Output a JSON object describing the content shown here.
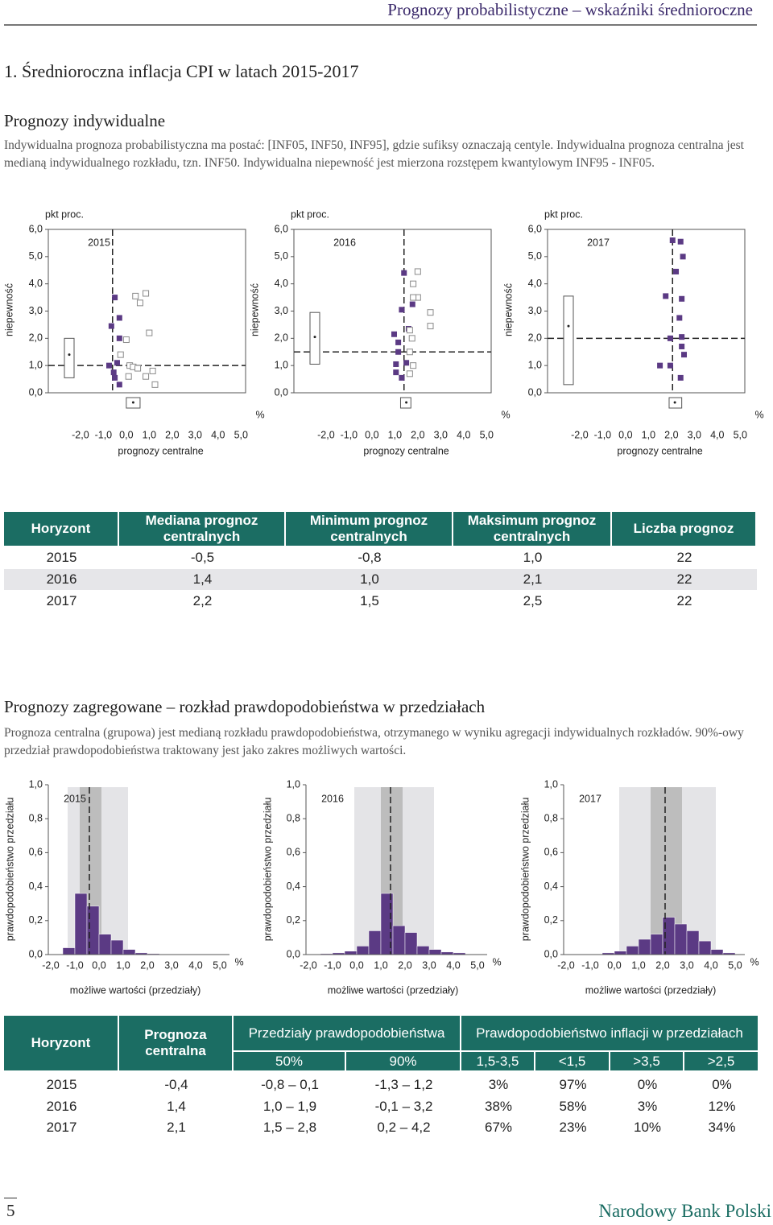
{
  "header": {
    "title": "Prognozy probabilistyczne – wskaźniki średnioroczne"
  },
  "section": {
    "title": "1. Średnioroczna inflacja CPI w latach 2015-2017"
  },
  "individual": {
    "heading": "Prognozy indywidualne",
    "text": "Indywidualna prognoza probabilistyczna ma postać: [INF05, INF50, INF95], gdzie sufiksy oznaczają centyle. Indywidualna prognoza centralna jest medianą indywidualnego rozkładu, tzn. INF50. Indywidualna niepewność jest mierzona rozstępem kwantylowym INF95 - INF05."
  },
  "chart_data": [
    {
      "type": "scatter",
      "title": "2015",
      "y_unit": "pkt proc.",
      "ylabel": "niepewność",
      "xlabel": "prognozy centralne",
      "x_unit": "%",
      "xlim": [
        -3.4,
        5.2
      ],
      "ylim": [
        0,
        6
      ],
      "xticks": [
        {
          "value": -2,
          "label": "-2,0"
        },
        {
          "value": -1,
          "label": "-1,0"
        },
        {
          "value": 0,
          "label": "0,0"
        },
        {
          "value": 1,
          "label": "1,0"
        },
        {
          "value": 2,
          "label": "2,0"
        },
        {
          "value": 3,
          "label": "3,0"
        },
        {
          "value": 4,
          "label": "4,0"
        },
        {
          "value": 5,
          "label": "5,0"
        }
      ],
      "yticks": [
        {
          "value": 0,
          "label": "0,0"
        },
        {
          "value": 1,
          "label": "1,0"
        },
        {
          "value": 2,
          "label": "2,0"
        },
        {
          "value": 3,
          "label": "3,0"
        },
        {
          "value": 4,
          "label": "4,0"
        },
        {
          "value": 5,
          "label": "5,0"
        },
        {
          "value": 6,
          "label": "6,0"
        }
      ],
      "median_x": -0.6,
      "median_y": 1.0,
      "series": [
        {
          "marker": "filled",
          "color": "#5b3a84",
          "x": [
            -0.5,
            -0.3,
            -0.65,
            -0.3,
            -0.75,
            -0.55,
            -0.5,
            -0.3,
            -0.4
          ],
          "values": [
            3.5,
            2.75,
            2.45,
            2.0,
            1.0,
            0.75,
            0.55,
            0.3,
            1.1
          ]
        },
        {
          "marker": "hollow",
          "color": "#8a8a8a",
          "x": [
            0.4,
            0.6,
            0.85,
            1.0,
            0.0,
            -0.25,
            0.15,
            0.3,
            0.5,
            1.15,
            0.85,
            1.25,
            0.1
          ],
          "values": [
            3.55,
            3.3,
            3.65,
            2.2,
            1.95,
            1.4,
            1.0,
            0.95,
            0.9,
            0.8,
            0.6,
            0.3,
            0.6
          ]
        }
      ],
      "y_box": [
        0.55,
        2.0
      ],
      "y_box_dot": 1.4,
      "x_box": [
        0.0,
        0.6
      ],
      "x_box_dot": 0.3
    },
    {
      "type": "scatter",
      "title": "2016",
      "y_unit": "pkt proc.",
      "ylabel": "niepewność",
      "xlabel": "prognozy centralne",
      "x_unit": "%",
      "xlim": [
        -3.4,
        5.2
      ],
      "ylim": [
        0,
        6
      ],
      "xticks": [
        {
          "value": -2,
          "label": "-2,0"
        },
        {
          "value": -1,
          "label": "-1,0"
        },
        {
          "value": 0,
          "label": "0,0"
        },
        {
          "value": 1,
          "label": "1,0"
        },
        {
          "value": 2,
          "label": "2,0"
        },
        {
          "value": 3,
          "label": "3,0"
        },
        {
          "value": 4,
          "label": "4,0"
        },
        {
          "value": 5,
          "label": "5,0"
        }
      ],
      "yticks": [
        {
          "value": 0,
          "label": "0,0"
        },
        {
          "value": 1,
          "label": "1,0"
        },
        {
          "value": 2,
          "label": "2,0"
        },
        {
          "value": 3,
          "label": "3,0"
        },
        {
          "value": 4,
          "label": "4,0"
        },
        {
          "value": 5,
          "label": "5,0"
        },
        {
          "value": 6,
          "label": "6,0"
        }
      ],
      "median_x": 1.4,
      "median_y": 1.5,
      "series": [
        {
          "marker": "filled",
          "color": "#5b3a84",
          "x": [
            1.4,
            1.3,
            0.97,
            1.15,
            1.05,
            1.5,
            1.05,
            1.3,
            1.6,
            1.77,
            1.15
          ],
          "values": [
            4.4,
            3.05,
            2.15,
            1.85,
            1.05,
            1.1,
            0.75,
            0.55,
            2.35,
            3.25,
            1.5
          ]
        },
        {
          "marker": "hollow",
          "color": "#8a8a8a",
          "x": [
            2.0,
            1.8,
            2.0,
            1.8,
            2.55,
            2.55,
            1.65,
            1.75,
            1.65,
            1.8,
            1.65
          ],
          "values": [
            4.45,
            4.0,
            3.5,
            3.5,
            2.95,
            2.45,
            2.3,
            2.0,
            1.5,
            1.0,
            0.7
          ]
        }
      ],
      "y_box": [
        1.05,
        2.95
      ],
      "y_box_dot": 2.05,
      "x_box": [
        1.25,
        1.7
      ],
      "x_box_dot": 1.5
    },
    {
      "type": "scatter",
      "title": "2017",
      "y_unit": "pkt proc.",
      "ylabel": "niepewność",
      "xlabel": "prognozy centralne",
      "x_unit": "%",
      "xlim": [
        -3.4,
        5.2
      ],
      "ylim": [
        0,
        6
      ],
      "xticks": [
        {
          "value": -2,
          "label": "-2,0"
        },
        {
          "value": -1,
          "label": "-1,0"
        },
        {
          "value": 0,
          "label": "0,0"
        },
        {
          "value": 1,
          "label": "1,0"
        },
        {
          "value": 2,
          "label": "2,0"
        },
        {
          "value": 3,
          "label": "3,0"
        },
        {
          "value": 4,
          "label": "4,0"
        },
        {
          "value": 5,
          "label": "5,0"
        }
      ],
      "yticks": [
        {
          "value": 0,
          "label": "0,0"
        },
        {
          "value": 1,
          "label": "1,0"
        },
        {
          "value": 2,
          "label": "2,0"
        },
        {
          "value": 3,
          "label": "3,0"
        },
        {
          "value": 4,
          "label": "4,0"
        },
        {
          "value": 5,
          "label": "5,0"
        },
        {
          "value": 6,
          "label": "6,0"
        }
      ],
      "median_x": 2.05,
      "median_y": 2.0,
      "series": [
        {
          "marker": "filled",
          "color": "#5b3a84",
          "x": [
            2.05,
            2.4,
            2.5,
            2.2,
            1.75,
            2.45,
            2.35,
            2.45,
            2.45,
            2.55,
            1.5,
            1.95,
            2.4,
            1.95
          ],
          "values": [
            5.6,
            5.55,
            5.0,
            4.45,
            3.55,
            3.45,
            2.75,
            2.05,
            1.7,
            1.4,
            1.0,
            1.0,
            0.55,
            2.0
          ]
        }
      ],
      "y_box": [
        0.3,
        3.55
      ],
      "y_box_dot": 2.45,
      "x_box": [
        1.9,
        2.45
      ],
      "x_box_dot": 2.15
    },
    {
      "type": "histogram",
      "title": "2015",
      "ylabel": "prawdopodobieństwo przedziału",
      "xlabel": "możliwe wartości (przedziały)",
      "x_unit": "%",
      "xlim": [
        -2.1,
        5.4
      ],
      "ylim": [
        0,
        1
      ],
      "xticks": [
        {
          "value": -2,
          "label": "-2,0"
        },
        {
          "value": -1,
          "label": "-1,0"
        },
        {
          "value": 0,
          "label": "0,0"
        },
        {
          "value": 1,
          "label": "1,0"
        },
        {
          "value": 2,
          "label": "2,0"
        },
        {
          "value": 3,
          "label": "3,0"
        },
        {
          "value": 4,
          "label": "4,0"
        },
        {
          "value": 5,
          "label": "5,0"
        }
      ],
      "yticks": [
        {
          "value": 0,
          "label": "0,0"
        },
        {
          "value": 0.2,
          "label": "0,2"
        },
        {
          "value": 0.4,
          "label": "0,4"
        },
        {
          "value": 0.6,
          "label": "0,6"
        },
        {
          "value": 0.8,
          "label": "0,8"
        },
        {
          "value": 1,
          "label": "1,0"
        }
      ],
      "bins": [
        -1.5,
        -1,
        -0.5,
        0,
        0.5,
        1,
        1.5,
        2,
        2.5
      ],
      "values": [
        0.04,
        0.36,
        0.285,
        0.12,
        0.085,
        0.03,
        0.01,
        0.005
      ],
      "color": "#5b3a84",
      "band_90": [
        -1.3,
        1.2
      ],
      "band_90_color": "#e4e4e7",
      "band_50": [
        -0.8,
        0.1
      ],
      "band_50_color": "#bdbdbd",
      "median": -0.4
    },
    {
      "type": "histogram",
      "title": "2016",
      "ylabel": "prawdopodobieństwo przedziału",
      "xlabel": "możliwe wartości (przedziały)",
      "x_unit": "%",
      "xlim": [
        -2.1,
        5.4
      ],
      "ylim": [
        0,
        1
      ],
      "xticks": [
        {
          "value": -2,
          "label": "-2,0"
        },
        {
          "value": -1,
          "label": "-1,0"
        },
        {
          "value": 0,
          "label": "0,0"
        },
        {
          "value": 1,
          "label": "1,0"
        },
        {
          "value": 2,
          "label": "2,0"
        },
        {
          "value": 3,
          "label": "3,0"
        },
        {
          "value": 4,
          "label": "4,0"
        },
        {
          "value": 5,
          "label": "5,0"
        }
      ],
      "yticks": [
        {
          "value": 0,
          "label": "0,0"
        },
        {
          "value": 0.2,
          "label": "0,2"
        },
        {
          "value": 0.4,
          "label": "0,4"
        },
        {
          "value": 0.6,
          "label": "0,6"
        },
        {
          "value": 0.8,
          "label": "0,8"
        },
        {
          "value": 1,
          "label": "1,0"
        }
      ],
      "bins": [
        -1.5,
        -1,
        -0.5,
        0,
        0.5,
        1,
        1.5,
        2,
        2.5,
        3,
        3.5,
        4,
        4.5
      ],
      "values": [
        0.005,
        0.01,
        0.02,
        0.05,
        0.14,
        0.36,
        0.17,
        0.13,
        0.05,
        0.03,
        0.015,
        0.01
      ],
      "color": "#5b3a84",
      "band_90": [
        -0.1,
        3.2
      ],
      "band_90_color": "#e4e4e7",
      "band_50": [
        1.0,
        1.9
      ],
      "band_50_color": "#bdbdbd",
      "median": 1.4
    },
    {
      "type": "histogram",
      "title": "2017",
      "ylabel": "prawdopodobieństwo przedziału",
      "xlabel": "możliwe wartości (przedziały)",
      "x_unit": "%",
      "xlim": [
        -2.1,
        5.4
      ],
      "ylim": [
        0,
        1
      ],
      "xticks": [
        {
          "value": -2,
          "label": "-2,0"
        },
        {
          "value": -1,
          "label": "-1,0"
        },
        {
          "value": 0,
          "label": "0,0"
        },
        {
          "value": 1,
          "label": "1,0"
        },
        {
          "value": 2,
          "label": "2,0"
        },
        {
          "value": 3,
          "label": "3,0"
        },
        {
          "value": 4,
          "label": "4,0"
        },
        {
          "value": 5,
          "label": "5,0"
        }
      ],
      "yticks": [
        {
          "value": 0,
          "label": "0,0"
        },
        {
          "value": 0.2,
          "label": "0,2"
        },
        {
          "value": 0.4,
          "label": "0,4"
        },
        {
          "value": 0.6,
          "label": "0,6"
        },
        {
          "value": 0.8,
          "label": "0,8"
        },
        {
          "value": 1,
          "label": "1,0"
        }
      ],
      "bins": [
        -0.5,
        0,
        0.5,
        1,
        1.5,
        2,
        2.5,
        3,
        3.5,
        4,
        4.5,
        5
      ],
      "values": [
        0.01,
        0.02,
        0.05,
        0.09,
        0.12,
        0.22,
        0.18,
        0.14,
        0.08,
        0.03,
        0.01
      ],
      "color": "#5b3a84",
      "band_90": [
        0.2,
        4.2
      ],
      "band_90_color": "#e4e4e7",
      "band_50": [
        1.5,
        2.8
      ],
      "band_50_color": "#bdbdbd",
      "median": 2.1
    }
  ],
  "table1": {
    "header": [
      "Horyzont",
      "Mediana prognoz centralnych",
      "Minimum prognoz centralnych",
      "Maksimum prognoz centralnych",
      "Liczba prognoz"
    ],
    "rows": [
      [
        "2015",
        "-0,5",
        "-0,8",
        "1,0",
        "22"
      ],
      [
        "2016",
        "1,4",
        "1,0",
        "2,1",
        "22"
      ],
      [
        "2017",
        "2,2",
        "1,5",
        "2,5",
        "22"
      ]
    ]
  },
  "aggregate": {
    "heading": "Prognozy zagregowane – rozkład prawdopodobieństwa w przedziałach",
    "text": "Prognoza centralna (grupowa) jest medianą rozkładu prawdopodobieństwa, otrzymanego w wyniku agregacji indywidualnych rozkładów. 90%-owy przedział prawdopodobieństwa traktowany jest jako zakres możliwych wartości."
  },
  "table2": {
    "header": {
      "horizon": "Horyzont",
      "central": "Prognoza centralna",
      "intervals": "Przedziały prawdopodobieństwa",
      "interval_columns": [
        "50%",
        "90%"
      ],
      "probabilities": "Prawdopodobieństwo inflacji w przedziałach",
      "probability_columns": [
        "1,5-3,5",
        "<1,5",
        ">3,5",
        ">2,5"
      ]
    },
    "rows": [
      [
        "2015",
        "-0,4",
        "-0,8 – 0,1",
        "-1,3 – 1,2",
        "3%",
        "97%",
        "0%",
        "0%"
      ],
      [
        "2016",
        "1,4",
        "1,0 – 1,9",
        "-0,1 – 3,2",
        "38%",
        "58%",
        "3%",
        "12%"
      ],
      [
        "2017",
        "2,1",
        "1,5 – 2,8",
        "0,2 – 4,2",
        "67%",
        "23%",
        "10%",
        "34%"
      ]
    ]
  },
  "footer": {
    "page": "5",
    "brand": "Narodowy Bank Polski"
  }
}
